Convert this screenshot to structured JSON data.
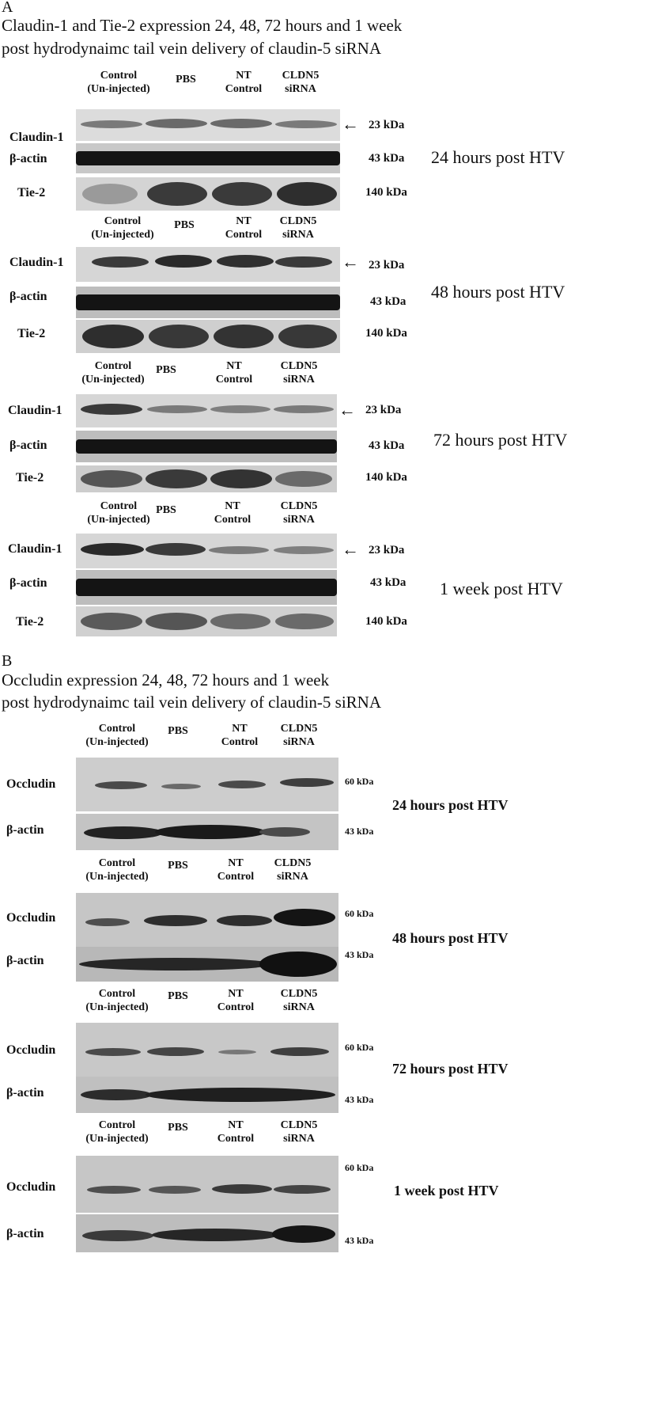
{
  "panel_a": {
    "letter": "A",
    "title_line1": "Claudin-1 and Tie-2 expression 24, 48, 72 hours and 1 week",
    "title_line2": "post hydrodynaimc tail vein delivery of claudin-5 siRNA",
    "lanes": [
      "Control\n(Un-injected)",
      "PBS",
      "NT\nControl",
      "CLDN5\nsiRNA"
    ],
    "rows": [
      "Claudin-1",
      "β-actin",
      "Tie-2"
    ],
    "markers": [
      "23 kDa",
      "43 kDa",
      "140 kDa"
    ],
    "arrow": "←",
    "timepoints": [
      "24 hours post HTV",
      "48 hours post HTV",
      "72 hours post HTV",
      "1 week post HTV"
    ]
  },
  "panel_b": {
    "letter": "B",
    "title_line1": "Occludin expression 24, 48, 72 hours and 1 week",
    "title_line2": "post hydrodynaimc tail vein delivery of claudin-5 siRNA",
    "lanes": [
      "Control\n(Un-injected)",
      "PBS",
      "NT\nControl",
      "CLDN5\nsiRNA"
    ],
    "rows": [
      "Occludin",
      "β-actin"
    ],
    "markers": [
      "60 kDa",
      "43 kDa"
    ],
    "timepoints": [
      "24 hours post HTV",
      "48 hours post HTV",
      "72 hours post HTV",
      "1 week post HTV"
    ]
  }
}
